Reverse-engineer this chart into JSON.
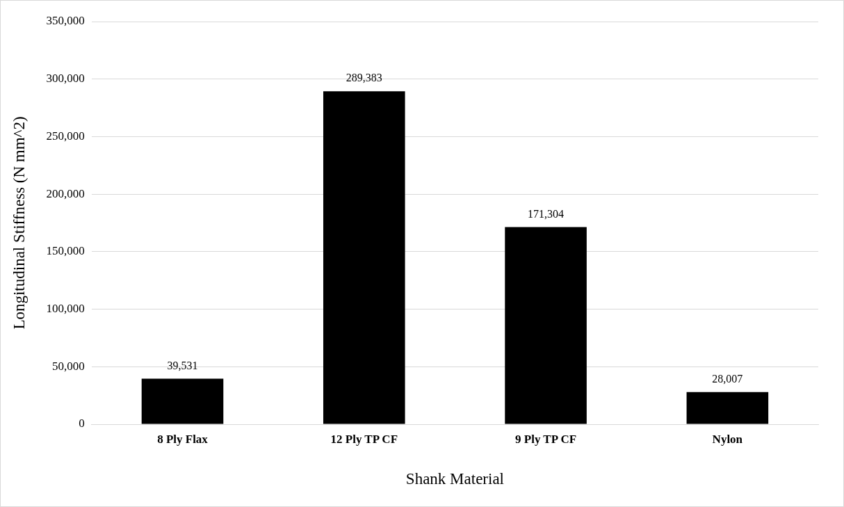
{
  "chart_data": {
    "type": "bar",
    "xlabel": "Shank Material",
    "ylabel": "Longitudinal Stiffness (N mm^2)",
    "categories": [
      "8 Ply Flax",
      "12 Ply TP CF",
      "9 Ply TP CF",
      "Nylon"
    ],
    "values": [
      39531,
      289383,
      171304,
      28007
    ],
    "value_labels": [
      "39,531",
      "289,383",
      "171,304",
      "28,007"
    ],
    "color": "#000000",
    "ylim": [
      0,
      350000
    ],
    "yticks": [
      0,
      {
        "value": 50000,
        "label": "50,000"
      },
      {
        "value": 100000,
        "label": "100,000"
      },
      {
        "value": 150000,
        "label": "150,000"
      },
      {
        "value": 200000,
        "label": "200,000"
      },
      {
        "value": 250000,
        "label": "250,000"
      },
      {
        "value": 300000,
        "label": "300,000"
      },
      {
        "value": 350000,
        "label": "350,000"
      }
    ],
    "grid": "y",
    "legend": false
  }
}
